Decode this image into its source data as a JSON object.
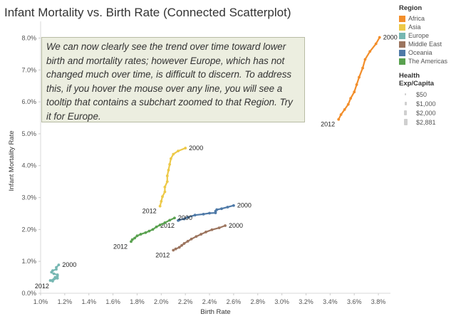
{
  "chart_data": {
    "type": "scatter",
    "title": "Infant Mortality vs. Birth Rate (Connected Scatterplot)",
    "xlabel": "Birth Rate",
    "ylabel": "Infant Mortality Rate",
    "xlim": [
      0.01,
      0.039
    ],
    "ylim": [
      0.0,
      0.083
    ],
    "xticks": [
      "1.0%",
      "1.2%",
      "1.4%",
      "1.6%",
      "1.8%",
      "2.0%",
      "2.2%",
      "2.4%",
      "2.6%",
      "2.8%",
      "3.0%",
      "3.2%",
      "3.4%",
      "3.6%",
      "3.8%"
    ],
    "yticks": [
      "0.0%",
      "1.0%",
      "2.0%",
      "3.0%",
      "4.0%",
      "5.0%",
      "6.0%",
      "7.0%",
      "8.0%"
    ],
    "grid": false,
    "legend_placement": "right",
    "annotation": "We can now clearly see the trend over time toward lower birth and mortality rates; however Europe, which has not changed much over time, is difficult to discern. To address this, if you hover the mouse over any line, you will see a tooltip that contains a subchart zoomed to that Region. Try it for Europe.",
    "series": [
      {
        "name": "Africa",
        "color": "#f28e2b",
        "start_label": "2000",
        "end_label": "2012",
        "points": [
          [
            0.0381,
            0.0802
          ],
          [
            0.0378,
            0.0782
          ],
          [
            0.0373,
            0.0758
          ],
          [
            0.0369,
            0.0733
          ],
          [
            0.0367,
            0.0706
          ],
          [
            0.0364,
            0.0677
          ],
          [
            0.0362,
            0.0654
          ],
          [
            0.036,
            0.0631
          ],
          [
            0.0357,
            0.0611
          ],
          [
            0.0355,
            0.0592
          ],
          [
            0.0352,
            0.0576
          ],
          [
            0.0349,
            0.056
          ],
          [
            0.0347,
            0.0545
          ]
        ]
      },
      {
        "name": "Asia",
        "color": "#edc948",
        "start_label": "2000",
        "end_label": "2012",
        "points": [
          [
            0.022,
            0.0455
          ],
          [
            0.0214,
            0.0446
          ],
          [
            0.021,
            0.0436
          ],
          [
            0.0208,
            0.0422
          ],
          [
            0.0207,
            0.0404
          ],
          [
            0.0206,
            0.0386
          ],
          [
            0.0205,
            0.0368
          ],
          [
            0.0205,
            0.035
          ],
          [
            0.0203,
            0.0333
          ],
          [
            0.0203,
            0.0318
          ],
          [
            0.0201,
            0.0303
          ],
          [
            0.02,
            0.0288
          ],
          [
            0.0199,
            0.0273
          ]
        ]
      },
      {
        "name": "Europe",
        "color": "#76b7b2",
        "start_label": "2000",
        "end_label": "2012",
        "points": [
          [
            0.0115,
            0.0089
          ],
          [
            0.0113,
            0.0081
          ],
          [
            0.0113,
            0.0075
          ],
          [
            0.011,
            0.0071
          ],
          [
            0.0109,
            0.0066
          ],
          [
            0.0111,
            0.0061
          ],
          [
            0.0114,
            0.0058
          ],
          [
            0.0114,
            0.0054
          ],
          [
            0.0112,
            0.005
          ],
          [
            0.0114,
            0.0047
          ],
          [
            0.0111,
            0.0044
          ],
          [
            0.0108,
            0.004
          ],
          [
            0.011,
            0.0038
          ]
        ]
      },
      {
        "name": "Middle East",
        "color": "#9c755f",
        "start_label": "2000",
        "end_label": "2012",
        "points": [
          [
            0.0253,
            0.0212
          ],
          [
            0.0248,
            0.0205
          ],
          [
            0.0242,
            0.0199
          ],
          [
            0.0237,
            0.0192
          ],
          [
            0.0233,
            0.0185
          ],
          [
            0.0229,
            0.0178
          ],
          [
            0.0225,
            0.017
          ],
          [
            0.0222,
            0.0163
          ],
          [
            0.0219,
            0.0156
          ],
          [
            0.0217,
            0.015
          ],
          [
            0.0215,
            0.0144
          ],
          [
            0.0212,
            0.0139
          ],
          [
            0.021,
            0.0135
          ]
        ]
      },
      {
        "name": "Oceania",
        "color": "#4e79a7",
        "start_label": "2000",
        "end_label": "2012",
        "points": [
          [
            0.026,
            0.0275
          ],
          [
            0.0255,
            0.027
          ],
          [
            0.025,
            0.0265
          ],
          [
            0.0246,
            0.0262
          ],
          [
            0.0245,
            0.0257
          ],
          [
            0.0245,
            0.0252
          ],
          [
            0.024,
            0.0251
          ],
          [
            0.0235,
            0.0248
          ],
          [
            0.0228,
            0.0245
          ],
          [
            0.0222,
            0.0238
          ],
          [
            0.0219,
            0.0233
          ],
          [
            0.0215,
            0.023
          ],
          [
            0.0214,
            0.0228
          ]
        ]
      },
      {
        "name": "The Americas",
        "color": "#59a14f",
        "start_label": "2000",
        "end_label": "2012",
        "points": [
          [
            0.0211,
            0.0236
          ],
          [
            0.0207,
            0.0229
          ],
          [
            0.0203,
            0.0221
          ],
          [
            0.0199,
            0.0214
          ],
          [
            0.0196,
            0.0208
          ],
          [
            0.0193,
            0.02
          ],
          [
            0.019,
            0.0195
          ],
          [
            0.0187,
            0.019
          ],
          [
            0.0183,
            0.0185
          ],
          [
            0.018,
            0.018
          ],
          [
            0.0178,
            0.0173
          ],
          [
            0.0176,
            0.0168
          ],
          [
            0.0175,
            0.0162
          ]
        ]
      }
    ]
  },
  "legend": {
    "region_title": "Region",
    "regions": [
      {
        "name": "Africa",
        "color": "#f28e2b"
      },
      {
        "name": "Asia",
        "color": "#edc948"
      },
      {
        "name": "Europe",
        "color": "#76b7b2"
      },
      {
        "name": "Middle East",
        "color": "#9c755f"
      },
      {
        "name": "Oceania",
        "color": "#4e79a7"
      },
      {
        "name": "The Americas",
        "color": "#59a14f"
      }
    ],
    "size_title": "Health Exp/Capita",
    "sizes": [
      {
        "label": "$50",
        "weight": 1
      },
      {
        "label": "$1,000",
        "weight": 2
      },
      {
        "label": "$2,000",
        "weight": 3
      },
      {
        "label": "$2,881",
        "weight": 4
      }
    ]
  }
}
